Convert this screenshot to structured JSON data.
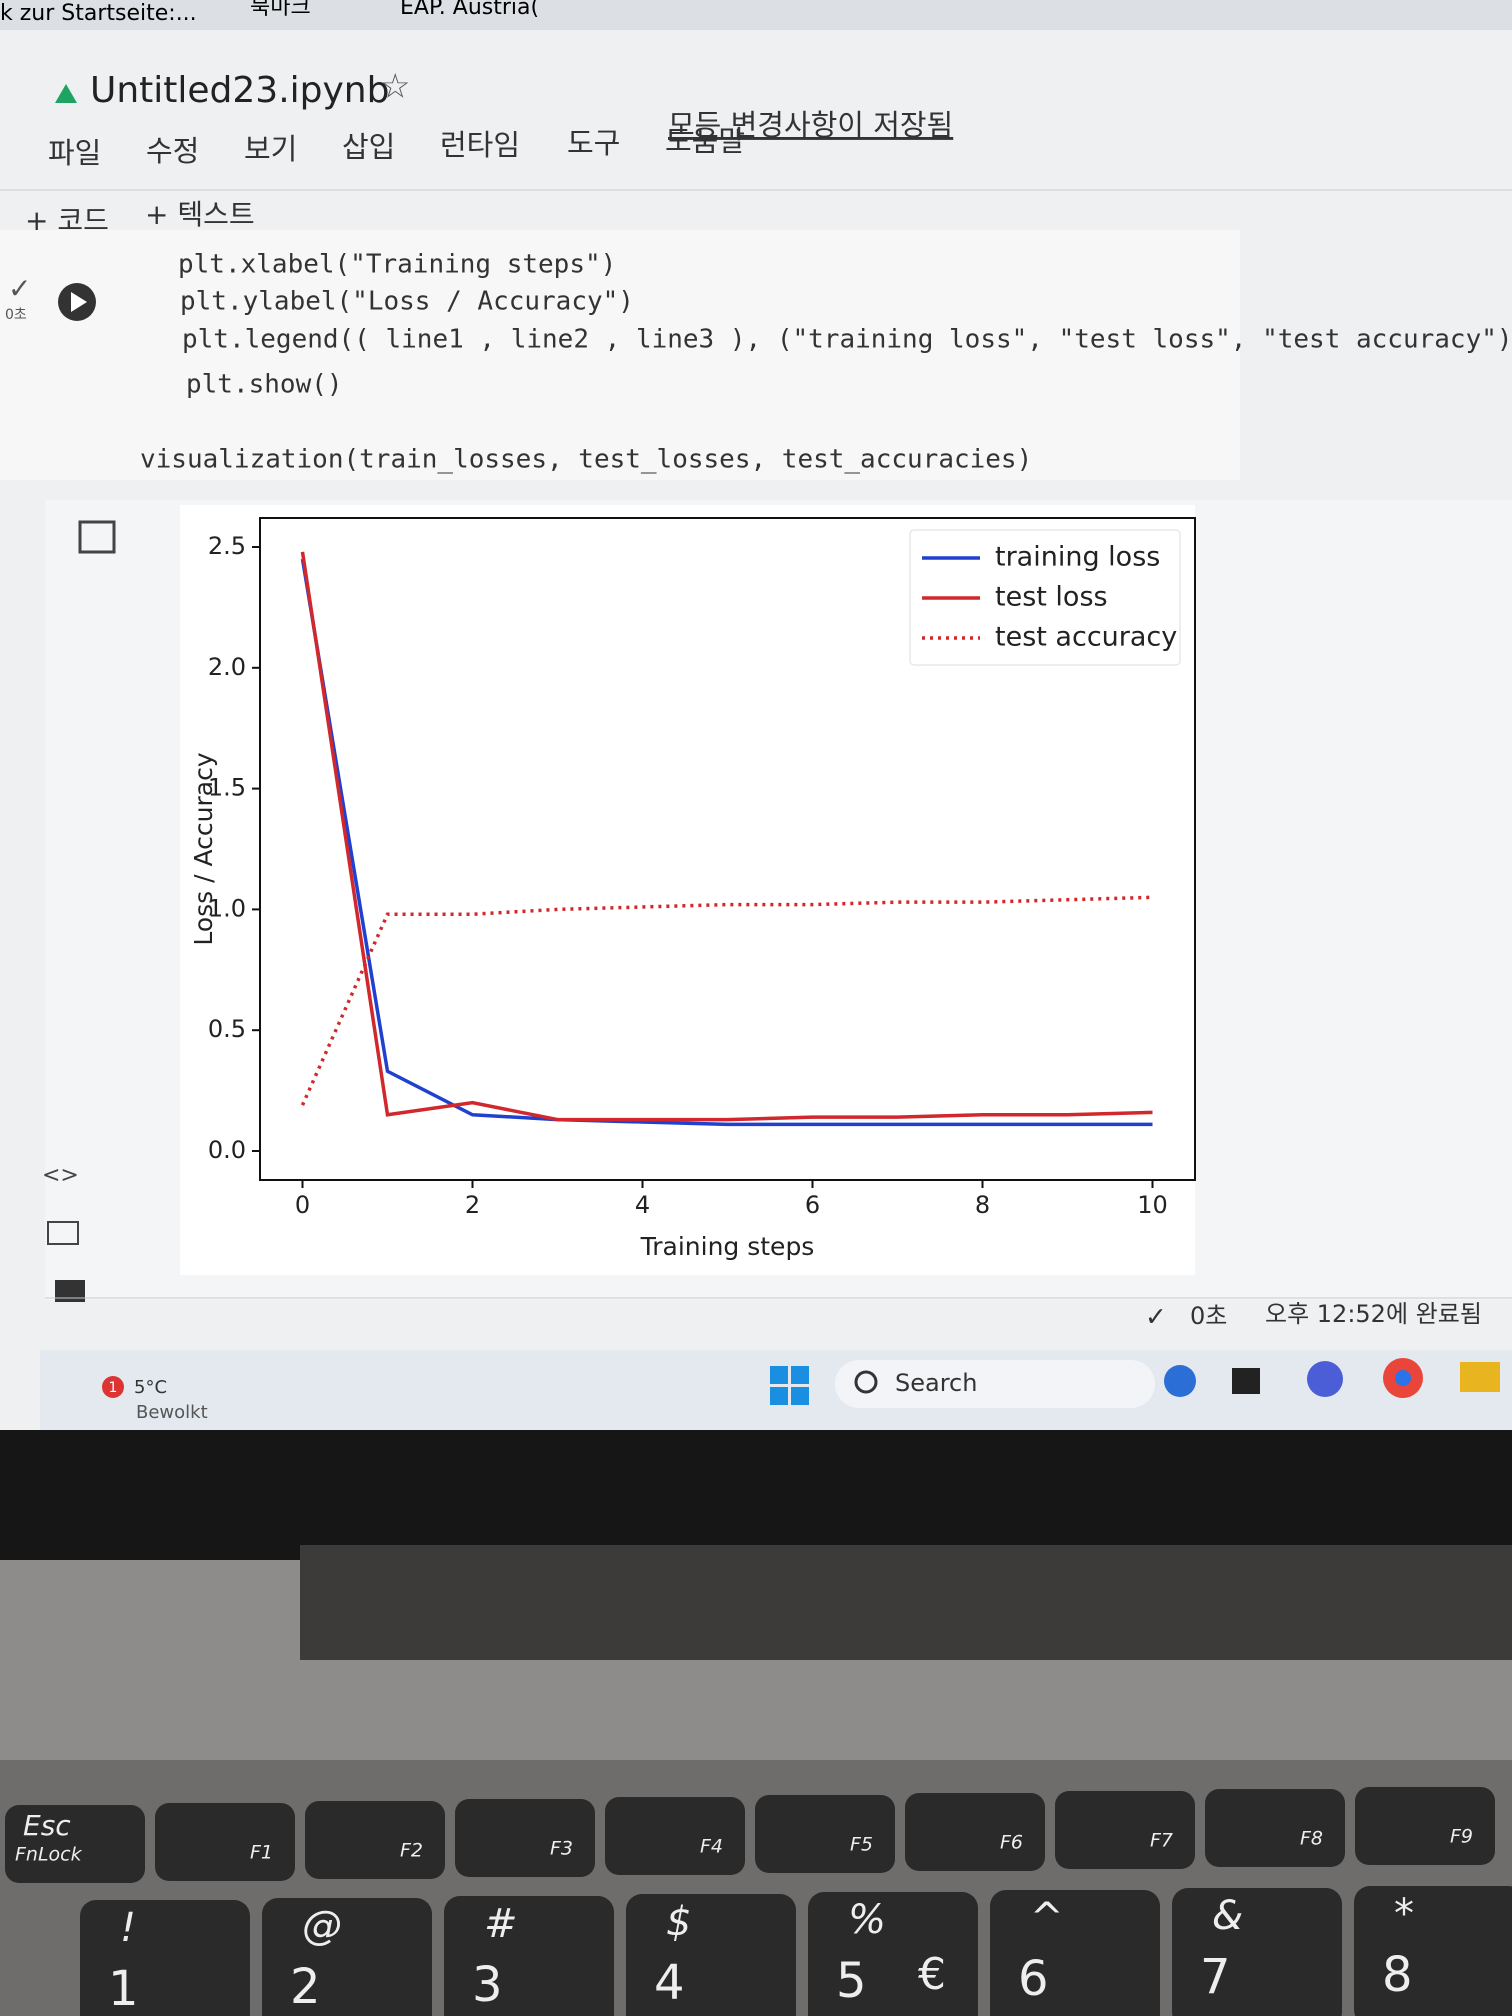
{
  "browser": {
    "bookmarks": [
      "k zur Startseite:...",
      "북마크",
      "EAP. Austria("
    ]
  },
  "notebook": {
    "title": "Untitled23.ipynb",
    "menu": [
      "파일",
      "수정",
      "보기",
      "삽입",
      "런타임",
      "도구",
      "도움말"
    ],
    "save_status": "모든 변경사항이 저장됨",
    "toolbar": [
      "+ 코드",
      "+ 텍스트"
    ],
    "exec_time": "0초",
    "code": [
      "plt.xlabel(\"Training steps\")",
      "plt.ylabel(\"Loss / Accuracy\")",
      "plt.legend(( line1 , line2 , line3 ), (\"training loss\", \"test loss\", \"test accuracy\"))",
      "plt.show()",
      "",
      "visualization(train_losses, test_losses, test_accuracies)"
    ]
  },
  "chart_data": {
    "type": "line",
    "xlabel": "Training steps",
    "ylabel": "Loss / Accuracy",
    "x": [
      0,
      1,
      2,
      3,
      4,
      5,
      6,
      7,
      8,
      9,
      10
    ],
    "series": [
      {
        "name": "training loss",
        "color": "#2040d0",
        "style": "solid",
        "values": [
          2.45,
          0.33,
          0.15,
          0.13,
          0.12,
          0.11,
          0.11,
          0.11,
          0.11,
          0.11,
          0.11
        ]
      },
      {
        "name": "test loss",
        "color": "#d0282c",
        "style": "solid",
        "values": [
          2.48,
          0.15,
          0.2,
          0.13,
          0.13,
          0.13,
          0.14,
          0.14,
          0.15,
          0.15,
          0.16
        ]
      },
      {
        "name": "test accuracy",
        "color": "#d0282c",
        "style": "dotted",
        "values": [
          0.19,
          0.98,
          0.98,
          1.0,
          1.01,
          1.02,
          1.02,
          1.03,
          1.03,
          1.04,
          1.05
        ]
      }
    ],
    "xlim": [
      -0.5,
      10.5
    ],
    "xticks": [
      0,
      2,
      4,
      6,
      8,
      10
    ],
    "ylim": [
      -0.12,
      2.62
    ],
    "yticks": [
      {
        "value": 0,
        "label": "0.0"
      },
      0.5,
      {
        "value": 1,
        "label": "1.0"
      },
      1.5,
      {
        "value": 2,
        "label": "2.0"
      },
      2.5
    ],
    "legend": "upper right",
    "grid": false
  },
  "status": {
    "duration": "0초",
    "completed": "오후 12:52에 완료됨"
  },
  "taskbar": {
    "badge": "1",
    "temperature": "5°C",
    "weather": "Bewolkt",
    "search": "Search"
  },
  "keyboard": {
    "function_row": [
      {
        "top": "Esc",
        "bottom": "FnLock"
      },
      {
        "label": "F1"
      },
      {
        "label": "F2"
      },
      {
        "label": "F3"
      },
      {
        "label": "F4"
      },
      {
        "label": "F5"
      },
      {
        "label": "F6"
      },
      {
        "label": "F7"
      },
      {
        "label": "F8"
      },
      {
        "label": "F9"
      }
    ],
    "number_row": [
      {
        "top": "!",
        "bottom": "1"
      },
      {
        "top": "@",
        "bottom": "2"
      },
      {
        "top": "#",
        "bottom": "3"
      },
      {
        "top": "$",
        "bottom": "4"
      },
      {
        "top": "%",
        "bottom": "5",
        "alt": "€"
      },
      {
        "top": "^",
        "bottom": "6"
      },
      {
        "top": "&",
        "bottom": "7"
      },
      {
        "top": "*",
        "bottom": "8"
      }
    ]
  }
}
